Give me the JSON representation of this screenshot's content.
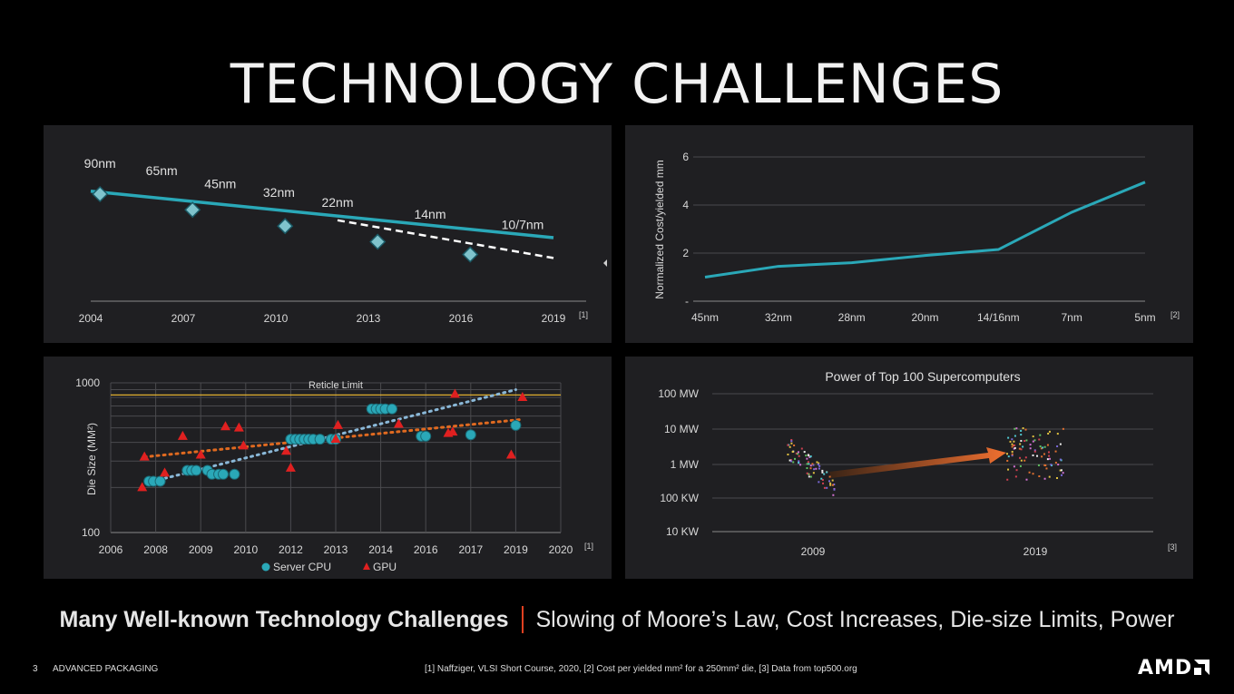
{
  "title": "TECHNOLOGY CHALLENGES",
  "summary": {
    "bold": "Many Well-known Technology Challenges",
    "rest": "Slowing of Moore’s Law, Cost Increases, Die-size Limits, Power"
  },
  "footer": {
    "page": "3",
    "section": "ADVANCED PACKAGING",
    "refs": "[1] Naffziger, VLSI Short Course, 2020, [2] Cost per yielded mm² for a 250mm² die, [3] Data from top500.org"
  },
  "logo": {
    "text": "AMD"
  },
  "colors": {
    "teal": "#2aa8b8",
    "red": "#e02020",
    "orange": "#e06a20",
    "gridline": "#4a4a4e",
    "reticle": "#e0b030",
    "trend_blue": "#8ab8d8"
  },
  "chart_data": [
    {
      "id": "node-scaling",
      "type": "line",
      "x_ticks": [
        "2004",
        "2007",
        "2010",
        "2013",
        "2016",
        "2019"
      ],
      "series": [
        {
          "style": "solid-teal",
          "x": [
            2004,
            2019
          ],
          "values": [
            4.55,
            3.75
          ]
        },
        {
          "style": "dashed-white",
          "x": [
            2012,
            2019
          ],
          "values": [
            4.05,
            3.4
          ]
        }
      ],
      "markers": [
        {
          "x": 2004.3,
          "y": 4.5
        },
        {
          "x": 2007.3,
          "y": 4.23
        },
        {
          "x": 2010.3,
          "y": 3.95
        },
        {
          "x": 2013.3,
          "y": 3.68
        },
        {
          "x": 2016.3,
          "y": 3.46
        }
      ],
      "node_labels": [
        {
          "text": "90nm",
          "x": 2004.3,
          "y": 4.95
        },
        {
          "text": "65nm",
          "x": 2006.3,
          "y": 4.83
        },
        {
          "text": "45nm",
          "x": 2008.2,
          "y": 4.6
        },
        {
          "text": "32nm",
          "x": 2010.1,
          "y": 4.45
        },
        {
          "text": "22nm",
          "x": 2012.0,
          "y": 4.28
        },
        {
          "text": "14nm",
          "x": 2015.0,
          "y": 4.08
        },
        {
          "text": "10/7nm",
          "x": 2018.0,
          "y": 3.9
        }
      ],
      "ref": "[1]"
    },
    {
      "id": "cost-per-mm",
      "type": "line",
      "categories": [
        "45nm",
        "32nm",
        "28nm",
        "20nm",
        "14/16nm",
        "7nm",
        "5nm"
      ],
      "values": [
        1.0,
        1.45,
        1.6,
        1.9,
        2.15,
        3.7,
        4.95
      ],
      "ylabel": "Normalized Cost/yielded mm",
      "y_ticks": [
        "-",
        "2",
        "4",
        "6"
      ],
      "ylim": [
        0,
        6
      ],
      "grid": true,
      "ref": "[2]"
    },
    {
      "id": "die-size",
      "type": "scatter",
      "ylabel": "Die Size (MM²)",
      "y_ticks": [
        "100",
        "1000"
      ],
      "ylim": [
        100,
        1000
      ],
      "y_scale": "log",
      "x_ticks": [
        "2006",
        "2008",
        "2009",
        "2010",
        "2012",
        "2013",
        "2014",
        "2016",
        "2017",
        "2019",
        "2020"
      ],
      "reticle": {
        "label": "Reticle Limit",
        "value": 830
      },
      "legend": [
        "Server CPU",
        "GPU"
      ],
      "server_cpu": [
        [
          1.7,
          220
        ],
        [
          1.9,
          220
        ],
        [
          2.2,
          220
        ],
        [
          3.4,
          260
        ],
        [
          3.6,
          260
        ],
        [
          3.8,
          260
        ],
        [
          4.3,
          260
        ],
        [
          4.5,
          245
        ],
        [
          4.8,
          245
        ],
        [
          5.0,
          245
        ],
        [
          5.5,
          245
        ],
        [
          8.0,
          420
        ],
        [
          8.2,
          420
        ],
        [
          8.4,
          420
        ],
        [
          8.6,
          420
        ],
        [
          8.8,
          420
        ],
        [
          9.0,
          420
        ],
        [
          9.3,
          420
        ],
        [
          9.8,
          420
        ],
        [
          10.0,
          420
        ],
        [
          11.6,
          670
        ],
        [
          11.8,
          670
        ],
        [
          12.0,
          670
        ],
        [
          12.2,
          670
        ],
        [
          12.5,
          670
        ],
        [
          13.8,
          440
        ],
        [
          14.0,
          440
        ],
        [
          16.0,
          450
        ],
        [
          18.0,
          520
        ]
      ],
      "gpu": [
        [
          1.4,
          200
        ],
        [
          1.5,
          320
        ],
        [
          2.4,
          250
        ],
        [
          3.2,
          440
        ],
        [
          4.0,
          330
        ],
        [
          5.1,
          510
        ],
        [
          5.7,
          500
        ],
        [
          5.9,
          380
        ],
        [
          7.8,
          350
        ],
        [
          8.0,
          270
        ],
        [
          10.0,
          420
        ],
        [
          10.1,
          520
        ],
        [
          12.8,
          530
        ],
        [
          15.0,
          460
        ],
        [
          15.2,
          470
        ],
        [
          15.3,
          840
        ],
        [
          17.8,
          330
        ],
        [
          18.3,
          800
        ]
      ],
      "trend_gpu": [
        [
          1.5,
          320
        ],
        [
          18.3,
          570
        ]
      ],
      "trend_cpu": [
        [
          2.4,
          230
        ],
        [
          18.0,
          900
        ]
      ],
      "ref": "[1]"
    },
    {
      "id": "supercomputers",
      "type": "scatter",
      "title": "Power of Top 100 Supercomputers",
      "y_ticks": [
        "100 MW",
        "10 MW",
        "1 MW",
        "100 KW",
        "10 KW"
      ],
      "y_scale": "log",
      "x_ticks": [
        "2009",
        "2019"
      ],
      "ref": "[3]"
    }
  ]
}
